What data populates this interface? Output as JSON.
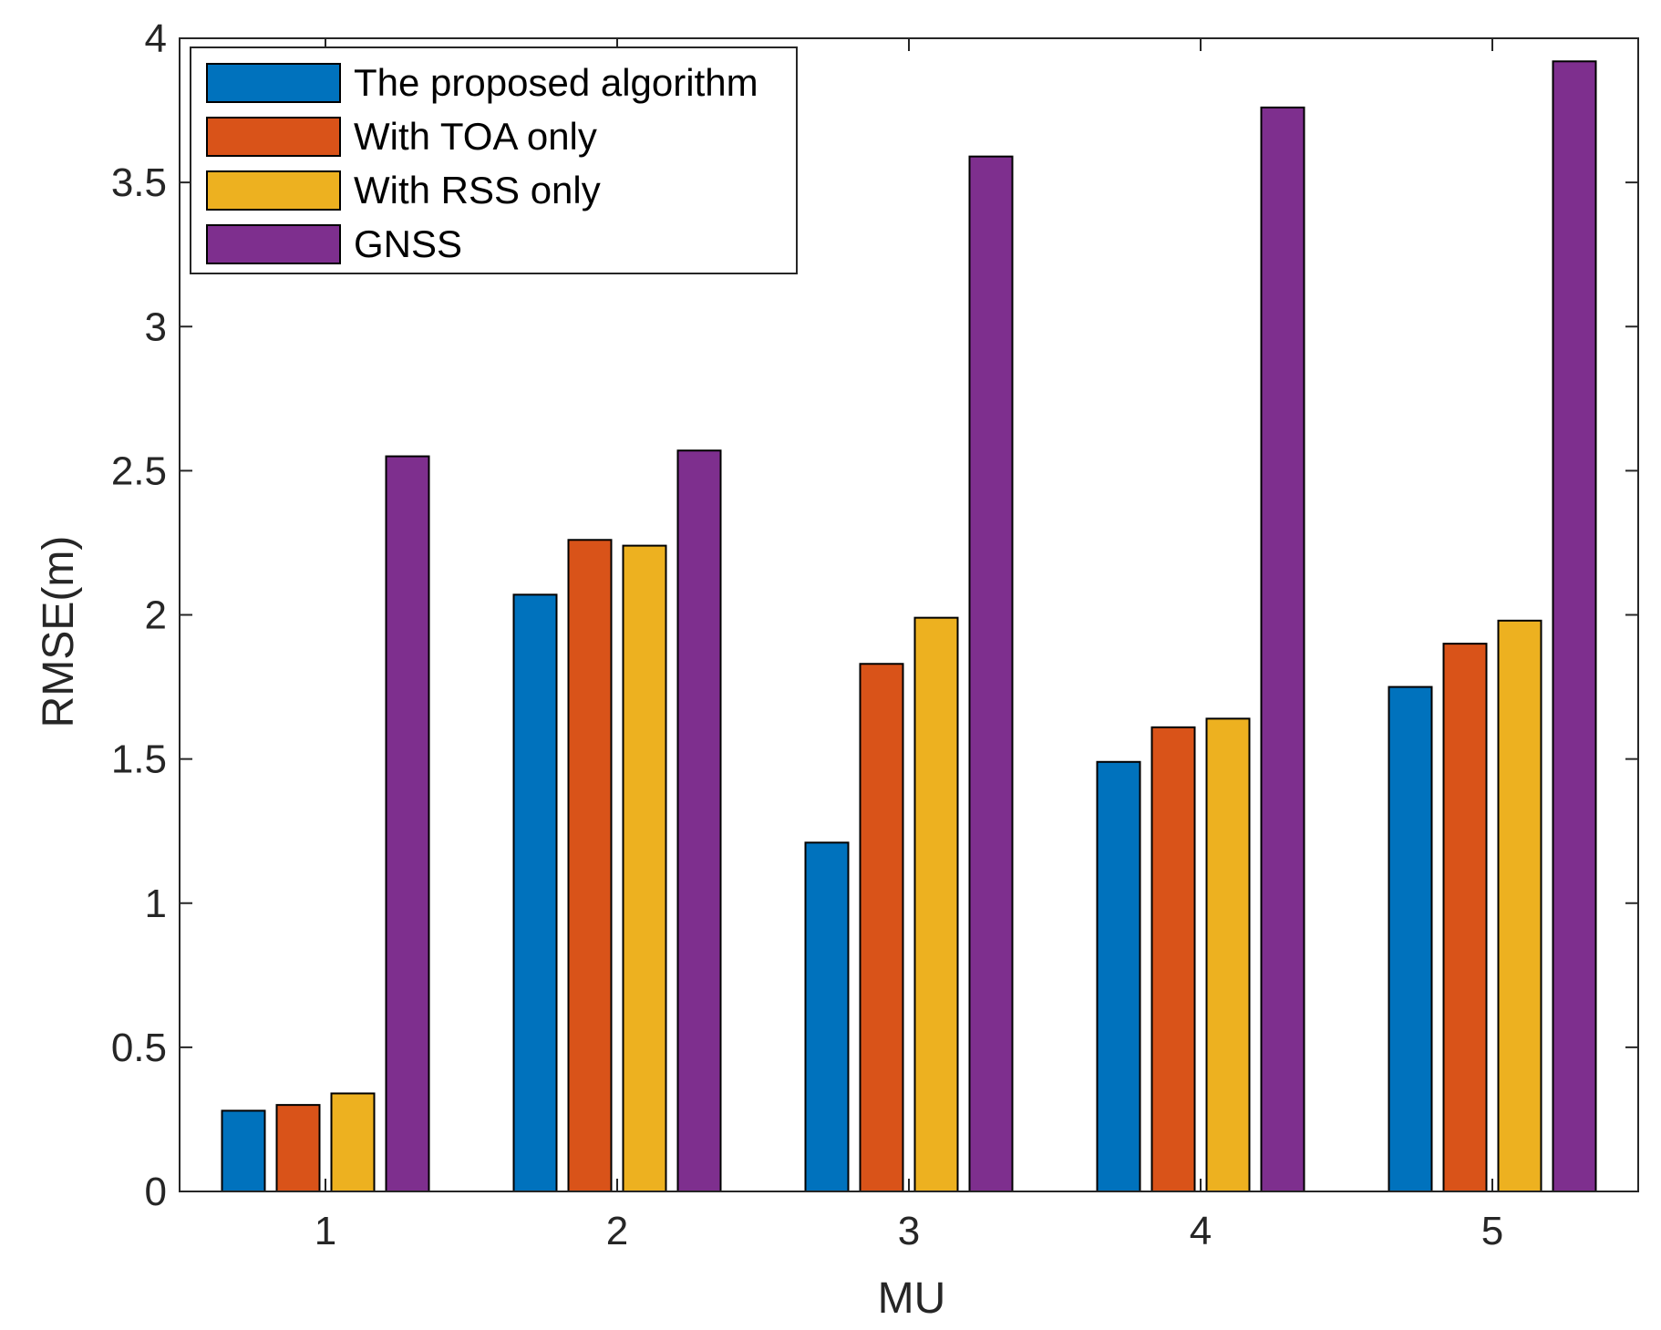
{
  "chart_data": {
    "type": "bar",
    "title": "",
    "xlabel": "MU",
    "ylabel": "RMSE(m)",
    "categories": [
      "1",
      "2",
      "3",
      "4",
      "5"
    ],
    "ylim": [
      0,
      4
    ],
    "yticks": [
      "0",
      "0.5",
      "1",
      "1.5",
      "2",
      "2.5",
      "3",
      "3.5",
      "4"
    ],
    "grid": false,
    "legend_position": "top-left",
    "series": [
      {
        "name": "The proposed algorithm",
        "color": "#0072BD",
        "values": [
          0.28,
          2.07,
          1.21,
          1.49,
          1.75
        ]
      },
      {
        "name": "With TOA only",
        "color": "#D95319",
        "values": [
          0.3,
          2.26,
          1.83,
          1.61,
          1.9
        ]
      },
      {
        "name": "With RSS only",
        "color": "#EDB120",
        "values": [
          0.34,
          2.24,
          1.99,
          1.64,
          1.98
        ]
      },
      {
        "name": "GNSS",
        "color": "#7E2F8E",
        "values": [
          2.55,
          2.57,
          3.59,
          3.76,
          3.92
        ]
      }
    ]
  }
}
